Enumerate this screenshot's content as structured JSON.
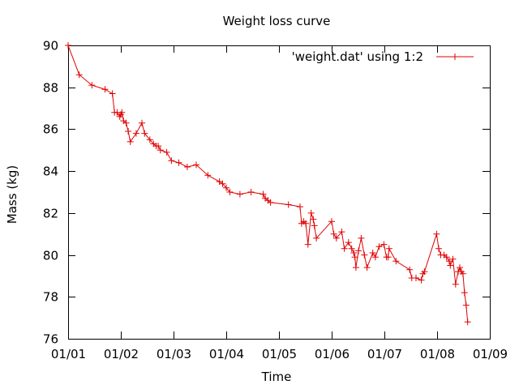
{
  "chart_data": {
    "type": "line",
    "title": "Weight loss curve",
    "xlabel": "Time",
    "ylabel": "Mass (kg)",
    "xlim": [
      0,
      8
    ],
    "ylim": [
      76,
      90
    ],
    "x_ticks": [
      {
        "value": 0,
        "label": "01/01"
      },
      {
        "value": 1,
        "label": "01/02"
      },
      {
        "value": 2,
        "label": "01/03"
      },
      {
        "value": 3,
        "label": "01/04"
      },
      {
        "value": 4,
        "label": "01/05"
      },
      {
        "value": 5,
        "label": "01/06"
      },
      {
        "value": 6,
        "label": "01/07"
      },
      {
        "value": 7,
        "label": "01/08"
      },
      {
        "value": 8,
        "label": "01/09"
      }
    ],
    "y_ticks": [
      76,
      78,
      80,
      82,
      84,
      86,
      88,
      90
    ],
    "grid": false,
    "legend_position": "top-right",
    "series_color": "#e00000",
    "series": [
      {
        "name": "'weight.dat' using 1:2",
        "marker": "+",
        "points": [
          [
            0.0,
            90.0
          ],
          [
            0.21,
            88.6
          ],
          [
            0.45,
            88.1
          ],
          [
            0.7,
            87.9
          ],
          [
            0.84,
            87.7
          ],
          [
            0.88,
            86.8
          ],
          [
            0.93,
            86.8
          ],
          [
            0.98,
            86.6
          ],
          [
            1.0,
            86.7
          ],
          [
            1.02,
            86.8
          ],
          [
            1.05,
            86.4
          ],
          [
            1.1,
            86.3
          ],
          [
            1.14,
            85.9
          ],
          [
            1.18,
            85.4
          ],
          [
            1.29,
            85.8
          ],
          [
            1.4,
            86.3
          ],
          [
            1.45,
            85.8
          ],
          [
            1.55,
            85.5
          ],
          [
            1.62,
            85.3
          ],
          [
            1.67,
            85.2
          ],
          [
            1.71,
            85.2
          ],
          [
            1.75,
            85.0
          ],
          [
            1.87,
            84.9
          ],
          [
            1.96,
            84.5
          ],
          [
            2.1,
            84.4
          ],
          [
            2.26,
            84.2
          ],
          [
            2.43,
            84.3
          ],
          [
            2.65,
            83.8
          ],
          [
            2.87,
            83.5
          ],
          [
            2.93,
            83.4
          ],
          [
            3.0,
            83.2
          ],
          [
            3.07,
            83.0
          ],
          [
            3.26,
            82.9
          ],
          [
            3.47,
            83.0
          ],
          [
            3.7,
            82.9
          ],
          [
            3.74,
            82.7
          ],
          [
            3.79,
            82.6
          ],
          [
            3.84,
            82.5
          ],
          [
            4.18,
            82.4
          ],
          [
            4.4,
            82.3
          ],
          [
            4.43,
            81.5
          ],
          [
            4.47,
            81.6
          ],
          [
            4.51,
            81.5
          ],
          [
            4.55,
            80.5
          ],
          [
            4.61,
            82.0
          ],
          [
            4.65,
            81.7
          ],
          [
            4.67,
            81.4
          ],
          [
            4.71,
            80.8
          ],
          [
            5.0,
            81.6
          ],
          [
            5.04,
            81.0
          ],
          [
            5.09,
            80.8
          ],
          [
            5.19,
            81.1
          ],
          [
            5.24,
            80.3
          ],
          [
            5.32,
            80.6
          ],
          [
            5.38,
            80.3
          ],
          [
            5.42,
            80.1
          ],
          [
            5.44,
            79.9
          ],
          [
            5.46,
            79.4
          ],
          [
            5.51,
            80.2
          ],
          [
            5.56,
            80.8
          ],
          [
            5.62,
            80.0
          ],
          [
            5.67,
            79.4
          ],
          [
            5.78,
            80.1
          ],
          [
            5.83,
            79.9
          ],
          [
            5.9,
            80.4
          ],
          [
            5.99,
            80.5
          ],
          [
            6.04,
            79.9
          ],
          [
            6.07,
            79.9
          ],
          [
            6.09,
            80.3
          ],
          [
            6.22,
            79.7
          ],
          [
            6.48,
            79.3
          ],
          [
            6.52,
            78.9
          ],
          [
            6.6,
            78.9
          ],
          [
            6.7,
            78.8
          ],
          [
            6.73,
            79.1
          ],
          [
            6.76,
            79.2
          ],
          [
            6.99,
            81.0
          ],
          [
            7.03,
            80.3
          ],
          [
            7.07,
            80.0
          ],
          [
            7.13,
            80.0
          ],
          [
            7.18,
            79.9
          ],
          [
            7.23,
            79.7
          ],
          [
            7.25,
            79.5
          ],
          [
            7.3,
            79.8
          ],
          [
            7.35,
            78.6
          ],
          [
            7.4,
            79.2
          ],
          [
            7.43,
            79.4
          ],
          [
            7.46,
            79.2
          ],
          [
            7.49,
            79.1
          ],
          [
            7.52,
            78.2
          ],
          [
            7.55,
            77.6
          ],
          [
            7.58,
            76.8
          ]
        ]
      }
    ]
  }
}
